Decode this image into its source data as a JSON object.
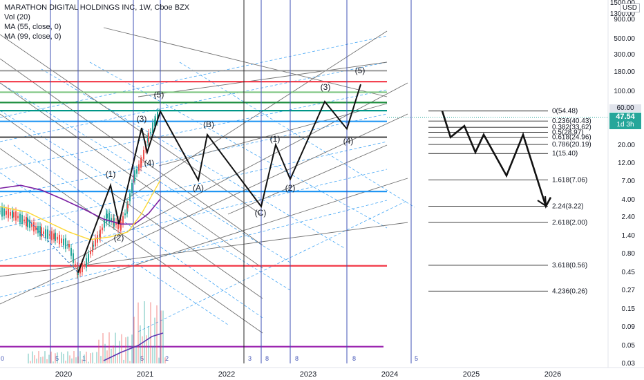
{
  "legend": {
    "title": "MARATHON DIGITAL HOLDINGS INC, 1W, Cboe BZX",
    "vol": "Vol (20)",
    "ma1": "MA (55, close, 0)",
    "ma2": "MA (99, close, 0)"
  },
  "price_axis": {
    "currency": "USD",
    "last_price": "47.54",
    "countdown": "1d 3h",
    "tag_price": "60.00",
    "color_last": "#26a69a",
    "color_tag": "#e0e3eb"
  },
  "chart_data": {
    "type": "line",
    "title": "MARATHON DIGITAL HOLDINGS INC, 1W, Cboe BZX",
    "y_scale": "log",
    "ylim": [
      0.03,
      1500
    ],
    "x_ticks": [
      "2020",
      "2021",
      "2022",
      "2023",
      "2024",
      "2025",
      "2026"
    ],
    "y_ticks": [
      "1500.00",
      "1300.00",
      "900.00",
      "500.00",
      "300.00",
      "180.00",
      "100.00",
      "60.00",
      "20.00",
      "12.00",
      "7.00",
      "4.00",
      "2.40",
      "1.40",
      "0.80",
      "0.45",
      "0.27",
      "0.15",
      "0.09",
      "0.05",
      "0.03"
    ],
    "vertical_line_labels": [
      "0",
      "5",
      "1",
      "5",
      "2",
      "3",
      "8",
      "8",
      "8",
      "5"
    ],
    "horizontal_levels": [
      {
        "price": 180,
        "color": "#9c9c9c"
      },
      {
        "price": 130,
        "color": "#f23645"
      },
      {
        "price": 95,
        "color": "#81c784"
      },
      {
        "price": 70,
        "color": "#1e8e3e"
      },
      {
        "price": 55,
        "color": "#009688"
      },
      {
        "price": 40,
        "color": "#2196f3"
      },
      {
        "price": 25,
        "color": "#555555"
      },
      {
        "price": 5,
        "color": "#2196f3"
      },
      {
        "price": 0.55,
        "color": "#f23645"
      },
      {
        "price": 0.05,
        "color": "#9c27b0"
      }
    ],
    "wave_labels": [
      "(1)",
      "(2)",
      "(3)",
      "(4)",
      "(5)",
      "(A)",
      "(B)",
      "(C)",
      "(1)",
      "(2)",
      "(3)",
      "(4)",
      "(5)"
    ],
    "fib_levels": [
      {
        "label": "0(54.48)",
        "price": 54.48
      },
      {
        "label": "0.236(40.43)",
        "price": 40.43
      },
      {
        "label": "0.382(33.62)",
        "price": 33.62
      },
      {
        "label": "0.5(28.97)",
        "price": 28.97
      },
      {
        "label": "0.618(24.96)",
        "price": 24.96
      },
      {
        "label": "0.786(20.19)",
        "price": 20.19
      },
      {
        "label": "1(15.40)",
        "price": 15.4
      },
      {
        "label": "1.618(7.06)",
        "price": 7.06
      },
      {
        "label": "2.24(3.22)",
        "price": 3.22
      },
      {
        "label": "2.618(2.00)",
        "price": 2.0
      },
      {
        "label": "3.618(0.56)",
        "price": 0.56
      },
      {
        "label": "4.236(0.26)",
        "price": 0.26
      }
    ],
    "projection_path": [
      54.48,
      25,
      35,
      16,
      27,
      8,
      27,
      3.22,
      4.2
    ]
  }
}
